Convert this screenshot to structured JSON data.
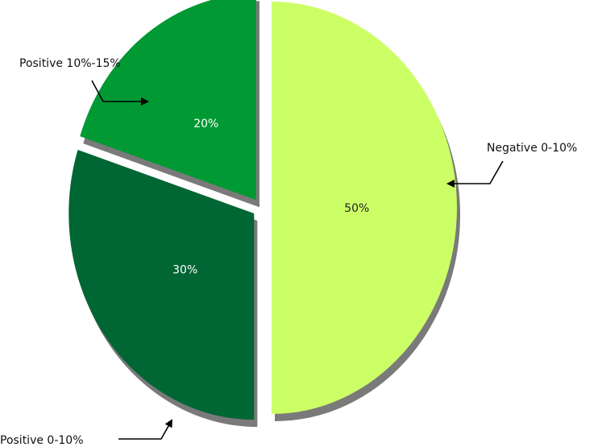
{
  "chart_data": {
    "type": "pie",
    "title": "",
    "slices": [
      {
        "label": "Negative 0-10%",
        "value": 50,
        "value_label": "50%",
        "color": "#ccff66",
        "text_color": "#222222"
      },
      {
        "label": "Positive 0-10%",
        "value": 30,
        "value_label": "30%",
        "color": "#006633",
        "text_color": "#ffffff"
      },
      {
        "label": "Positive 10%-15%",
        "value": 20,
        "value_label": "20%",
        "color": "#009933",
        "text_color": "#ffffff"
      }
    ],
    "legend": "callouts",
    "exploded": true,
    "style": "3d"
  }
}
